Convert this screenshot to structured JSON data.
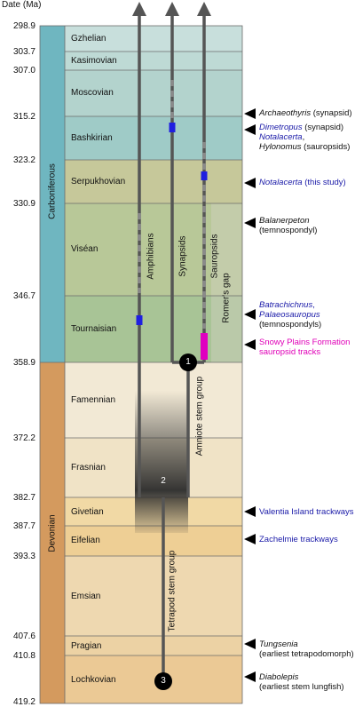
{
  "header": "Date (Ma)",
  "dates": [
    "298.9",
    "303.7",
    "307.0",
    "315.2",
    "323.2",
    "330.9",
    "346.7",
    "358.9",
    "372.2",
    "382.7",
    "387.7",
    "393.3",
    "407.6",
    "410.8",
    "419.2"
  ],
  "periods": {
    "carboniferous": "Carboniferous",
    "devonian": "Devonian"
  },
  "stages": [
    "Gzhelian",
    "Kasimovian",
    "Moscovian",
    "Bashkirian",
    "Serpukhovian",
    "Viséan",
    "Tournaisian",
    "Famennian",
    "Frasnian",
    "Givetian",
    "Eifelian",
    "Emsian",
    "Pragian",
    "Lochkovian"
  ],
  "lineages": {
    "amphibians": "Amphibians",
    "synapsids": "Synapsids",
    "sauropsids": "Sauropsids",
    "romers_gap": "Romer's gap",
    "amniote_stem": "Amniote stem group",
    "tetrapod_stem": "Tetrapod stem group"
  },
  "nodes": [
    "1",
    "2",
    "3"
  ],
  "annotations": [
    {
      "lines": [
        [
          "Archaeothyris",
          " (synapsid)"
        ]
      ]
    },
    {
      "lines": [
        [
          "Dimetropus",
          " (synapsid)"
        ],
        [
          "Notalacerta",
          ","
        ],
        [
          "Hylonomus",
          " (sauropsids)"
        ]
      ]
    },
    {
      "lines": [
        [
          "Notalacerta",
          " (this study)"
        ]
      ]
    },
    {
      "lines": [
        [
          "Balanerpeton",
          ""
        ],
        [
          "",
          "(temnospondyl)"
        ]
      ]
    },
    {
      "lines": [
        [
          "Batrachichnus",
          ","
        ],
        [
          "Palaeosauropus",
          ""
        ],
        [
          "",
          "(temnospondyls)"
        ]
      ]
    },
    {
      "lines": [
        [
          "",
          "Snowy Plains Formation"
        ],
        [
          "",
          "sauropsid tracks"
        ]
      ]
    },
    {
      "lines": [
        [
          "",
          "Valentia Island trackways"
        ]
      ]
    },
    {
      "lines": [
        [
          "",
          "Zachelmie trackways"
        ]
      ]
    },
    {
      "lines": [
        [
          "Tungsenia",
          ""
        ],
        [
          "",
          "(earliest tetrapodomorph)"
        ]
      ]
    },
    {
      "lines": [
        [
          "Diabolepis",
          ""
        ],
        [
          "",
          "(earliest stem lungfish)"
        ]
      ]
    }
  ],
  "colors": {
    "carboniferous_band": "#6fb6c0",
    "devonian_band": "#d49a5e",
    "marker_blue": "#1f1fe0",
    "marker_magenta": "#e000c0",
    "lineage_line": "#555555"
  }
}
